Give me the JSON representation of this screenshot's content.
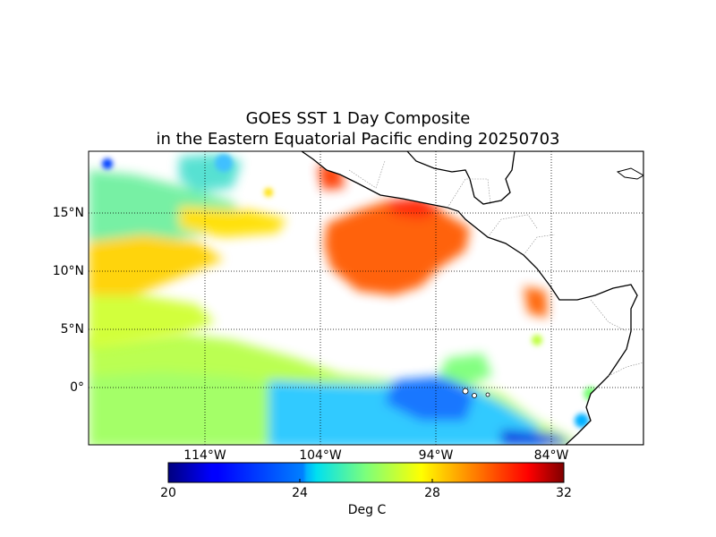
{
  "title_line1": "GOES SST 1 Day Composite",
  "title_line2": "in the Eastern Equatorial Pacific ending 20250703",
  "lat_labels": [
    "15°N",
    "10°N",
    "5°N",
    "0°"
  ],
  "lon_labels": [
    "114°W",
    "104°W",
    "94°W",
    "84°W"
  ],
  "colorbar": {
    "label": "Deg C",
    "min": 20,
    "max": 32,
    "ticks": [
      "20",
      "24",
      "28",
      "32"
    ],
    "colormap": "jet"
  },
  "map": {
    "lon_range": [
      -124,
      -76
    ],
    "lat_range": [
      -5,
      20
    ],
    "gridlines": true,
    "land_color": "#ffffff",
    "missing_color": "#ffffff"
  }
}
